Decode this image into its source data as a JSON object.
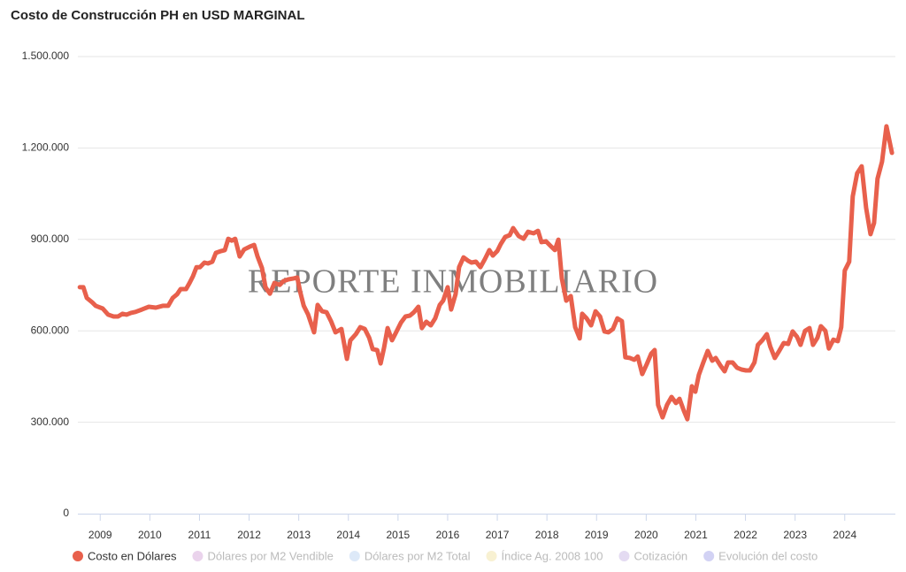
{
  "chart_data": {
    "type": "line",
    "title": "Costo de Construcción PH en USD MARGINAL",
    "watermark": "REPORTE INMOBILIARIO",
    "x": [
      2008.59,
      2008.66,
      2008.73,
      2008.84,
      2008.91,
      2009.05,
      2009.16,
      2009.27,
      2009.36,
      2009.45,
      2009.53,
      2009.62,
      2009.71,
      2009.84,
      2009.98,
      2010.12,
      2010.26,
      2010.37,
      2010.46,
      2010.55,
      2010.62,
      2010.73,
      2010.8,
      2010.87,
      2010.94,
      2011.01,
      2011.1,
      2011.17,
      2011.26,
      2011.33,
      2011.44,
      2011.51,
      2011.58,
      2011.65,
      2011.72,
      2011.81,
      2011.9,
      2012.01,
      2012.1,
      2012.17,
      2012.26,
      2012.33,
      2012.42,
      2012.51,
      2012.62,
      2012.69,
      2012.79,
      2012.9,
      2012.97,
      2013.03,
      2013.1,
      2013.19,
      2013.31,
      2013.38,
      2013.47,
      2013.56,
      2013.65,
      2013.74,
      2013.86,
      2013.97,
      2014.04,
      2014.15,
      2014.24,
      2014.33,
      2014.42,
      2014.49,
      2014.58,
      2014.65,
      2014.72,
      2014.79,
      2014.88,
      2014.97,
      2015.06,
      2015.15,
      2015.24,
      2015.32,
      2015.41,
      2015.48,
      2015.57,
      2015.66,
      2015.75,
      2015.84,
      2015.91,
      2016.0,
      2016.07,
      2016.16,
      2016.23,
      2016.32,
      2016.41,
      2016.48,
      2016.57,
      2016.66,
      2016.75,
      2016.84,
      2016.91,
      2017.0,
      2017.07,
      2017.16,
      2017.25,
      2017.32,
      2017.43,
      2017.53,
      2017.62,
      2017.73,
      2017.82,
      2017.89,
      2017.98,
      2018.07,
      2018.16,
      2018.23,
      2018.3,
      2018.39,
      2018.48,
      2018.57,
      2018.66,
      2018.71,
      2018.8,
      2018.89,
      2018.98,
      2019.07,
      2019.16,
      2019.24,
      2019.33,
      2019.42,
      2019.51,
      2019.58,
      2019.67,
      2019.76,
      2019.83,
      2019.92,
      2020.01,
      2020.1,
      2020.17,
      2020.24,
      2020.33,
      2020.42,
      2020.51,
      2020.6,
      2020.67,
      2020.76,
      2020.83,
      2020.92,
      2020.99,
      2021.06,
      2021.15,
      2021.24,
      2021.33,
      2021.4,
      2021.49,
      2021.58,
      2021.65,
      2021.74,
      2021.83,
      2021.92,
      2022.01,
      2022.09,
      2022.18,
      2022.25,
      2022.34,
      2022.43,
      2022.5,
      2022.59,
      2022.68,
      2022.77,
      2022.86,
      2022.95,
      2023.04,
      2023.11,
      2023.2,
      2023.29,
      2023.36,
      2023.45,
      2023.52,
      2023.61,
      2023.68,
      2023.77,
      2023.86,
      2023.93,
      2024.0,
      2024.09,
      2024.16,
      2024.25,
      2024.34,
      2024.43,
      2024.52,
      2024.59,
      2024.66,
      2024.75,
      2024.84,
      2024.95
    ],
    "series": [
      {
        "name": "Costo en Dólares",
        "color": "#e8604c",
        "visible": true,
        "values": [
          743000,
          743000,
          708000,
          693000,
          682000,
          673000,
          653000,
          647000,
          647000,
          656000,
          653000,
          659000,
          662000,
          670000,
          679000,
          676000,
          682000,
          682000,
          708000,
          720000,
          737000,
          737000,
          757000,
          780000,
          809000,
          809000,
          824000,
          821000,
          827000,
          856000,
          862000,
          865000,
          902000,
          896000,
          902000,
          844000,
          867000,
          876000,
          882000,
          844000,
          806000,
          743000,
          722000,
          757000,
          751000,
          763000,
          769000,
          772000,
          775000,
          728000,
          682000,
          653000,
          595000,
          685000,
          664000,
          661000,
          632000,
          595000,
          606000,
          508000,
          569000,
          589000,
          612000,
          606000,
          577000,
          540000,
          537000,
          493000,
          545000,
          609000,
          569000,
          598000,
          627000,
          647000,
          650000,
          661000,
          679000,
          609000,
          630000,
          618000,
          641000,
          685000,
          699000,
          743000,
          670000,
          720000,
          809000,
          841000,
          830000,
          824000,
          827000,
          809000,
          835000,
          865000,
          847000,
          862000,
          885000,
          908000,
          914000,
          937000,
          911000,
          902000,
          925000,
          920000,
          928000,
          891000,
          894000,
          879000,
          865000,
          899000,
          772000,
          699000,
          714000,
          612000,
          575000,
          656000,
          641000,
          618000,
          664000,
          647000,
          598000,
          595000,
          606000,
          641000,
          632000,
          513000,
          511000,
          505000,
          516000,
          458000,
          490000,
          525000,
          537000,
          357000,
          316000,
          357000,
          383000,
          363000,
          377000,
          337000,
          310000,
          418000,
          400000,
          455000,
          496000,
          534000,
          502000,
          511000,
          487000,
          467000,
          496000,
          496000,
          479000,
          473000,
          470000,
          470000,
          496000,
          554000,
          569000,
          589000,
          548000,
          511000,
          534000,
          560000,
          557000,
          598000,
          580000,
          554000,
          600000,
          609000,
          554000,
          577000,
          615000,
          600000,
          542000,
          571000,
          566000,
          612000,
          798000,
          827000,
          1041000,
          1117000,
          1140000,
          1004000,
          917000,
          954000,
          1099000,
          1155000,
          1271000,
          1184000
        ]
      },
      {
        "name": "Dólares por M2 Vendible",
        "color": "#ead3ec",
        "visible": false
      },
      {
        "name": "Dólares por M2 Total",
        "color": "#dde9f8",
        "visible": false
      },
      {
        "name": "Índice Ag. 2008 100",
        "color": "#f8f1d2",
        "visible": false
      },
      {
        "name": "Cotización",
        "color": "#e4dbf2",
        "visible": false
      },
      {
        "name": "Evolución del costo",
        "color": "#d2d2f4",
        "visible": false
      }
    ],
    "xlim": [
      2008.55,
      2025.02
    ],
    "xticks": [
      2009,
      2010,
      2011,
      2012,
      2013,
      2014,
      2015,
      2016,
      2017,
      2018,
      2019,
      2020,
      2021,
      2022,
      2023,
      2024
    ],
    "ylim": [
      0,
      1500000
    ],
    "yticks": [
      0,
      {
        "value": 300000,
        "label": "300.000"
      },
      {
        "value": 600000,
        "label": "600.000"
      },
      {
        "value": 900000,
        "label": "900.000"
      },
      {
        "value": 1200000,
        "label": "1.200.000"
      },
      {
        "value": 1500000,
        "label": "1.500.000"
      }
    ],
    "grid": true
  }
}
